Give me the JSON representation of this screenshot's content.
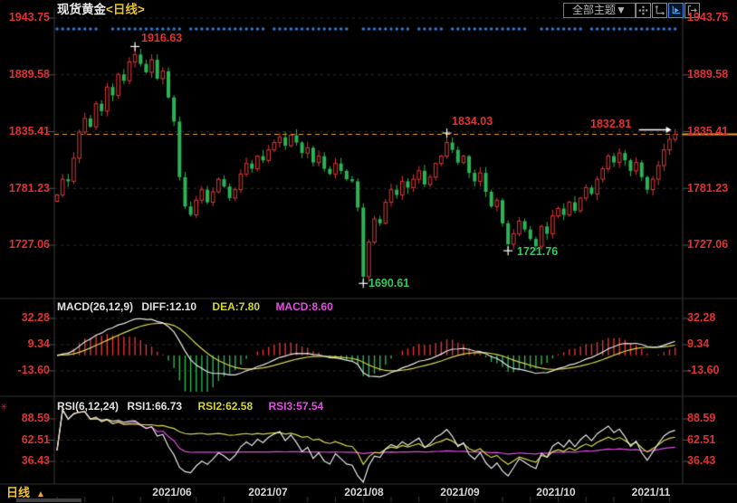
{
  "header": {
    "symbol": "现货黄金",
    "period": "<日线>"
  },
  "toolbar": {
    "theme_label": "全部主题▼",
    "icons": [
      "pan-icon",
      "axis-scale-icon",
      "axis-play-icon",
      "exit-chart-icon"
    ],
    "active_icon": "axis-play-icon"
  },
  "axes": {
    "price": [
      "1943.75",
      "1889.58",
      "1835.41",
      "1781.23",
      "1727.06"
    ],
    "macd": [
      "32.28",
      "9.34",
      "-13.60"
    ],
    "rsi": [
      "88.59",
      "62.51",
      "36.43"
    ]
  },
  "macd_legend": {
    "title": "MACD(26,12,9)",
    "diff": "DIFF:12.10",
    "dea": "DEA:7.80",
    "macd": "MACD:8.60"
  },
  "rsi_legend": {
    "title": "RSI(6,12,24)",
    "rsi1": "RSI1:66.73",
    "rsi2": "RSI2:62.58",
    "rsi3": "RSI3:57.54"
  },
  "status_bar": {
    "period": "日线",
    "arrow": "▲",
    "marker": "✳"
  },
  "colors": {
    "up": "#e23535",
    "down": "#2bb457",
    "up_text": "#e03232",
    "down_text": "#33c95f",
    "last_price_line": "#f0a030",
    "diff_line": "#e8e8e8",
    "dea_line": "#d8d84a",
    "macd_line": "#e24ee2",
    "event_dot": "#2e7fd6",
    "grid": "#2b2b2b",
    "border": "#3c3c3c"
  },
  "chart_data": {
    "type": "candlestick",
    "title": "现货黄金 日线 (Spot Gold, daily)",
    "x_labels": [
      "2021/06",
      "2021/07",
      "2021/08",
      "2021/09",
      "2021/10",
      "2021/11"
    ],
    "price_axis": [
      1943.75,
      1889.58,
      1835.41,
      1781.23,
      1727.06
    ],
    "macd_axis": [
      32.28,
      9.34,
      -13.6
    ],
    "rsi_axis": [
      88.59,
      62.51,
      36.43
    ],
    "closes": [
      1775,
      1790,
      1788,
      1810,
      1835,
      1848,
      1840,
      1862,
      1855,
      1878,
      1870,
      1890,
      1884,
      1902,
      1909,
      1900,
      1892,
      1904,
      1886,
      1893,
      1868,
      1845,
      1792,
      1764,
      1756,
      1770,
      1780,
      1768,
      1778,
      1790,
      1783,
      1772,
      1780,
      1795,
      1805,
      1800,
      1812,
      1808,
      1818,
      1825,
      1830,
      1822,
      1832,
      1825,
      1815,
      1820,
      1806,
      1812,
      1800,
      1795,
      1805,
      1798,
      1790,
      1788,
      1763,
      1697,
      1730,
      1752,
      1748,
      1768,
      1780,
      1775,
      1788,
      1782,
      1790,
      1798,
      1785,
      1792,
      1805,
      1812,
      1825,
      1818,
      1806,
      1812,
      1796,
      1788,
      1796,
      1778,
      1764,
      1770,
      1748,
      1728,
      1738,
      1750,
      1742,
      1733,
      1726,
      1745,
      1738,
      1755,
      1762,
      1756,
      1768,
      1760,
      1772,
      1782,
      1776,
      1790,
      1800,
      1812,
      1806,
      1815,
      1808,
      1798,
      1806,
      1792,
      1780,
      1790,
      1803,
      1818,
      1828,
      1832.81
    ],
    "key_points": [
      {
        "day": 14,
        "kind": "high",
        "value": 1916.63,
        "label": "1916.63",
        "trend": "up"
      },
      {
        "day": 55,
        "kind": "low",
        "value": 1690.61,
        "label": "1690.61",
        "trend": "down"
      },
      {
        "day": 70,
        "kind": "high",
        "value": 1834.03,
        "label": "1834.03",
        "trend": "up"
      },
      {
        "day": 81,
        "kind": "low",
        "value": 1721.76,
        "label": "1721.76",
        "trend": "down"
      },
      {
        "day": 111,
        "kind": "close",
        "value": 1832.81,
        "label": "1832.81",
        "trend": "up"
      }
    ],
    "last_price_level": 1832.81,
    "event_dot_gaps": [
      8,
      9,
      23,
      38,
      53,
      54,
      64,
      70,
      85,
      86,
      95
    ],
    "indicators": {
      "macd": {
        "params": [
          26,
          12,
          9
        ],
        "diff": 12.1,
        "dea": 7.8,
        "macd": 8.6
      },
      "rsi": {
        "params": [
          6,
          12,
          24
        ],
        "rsi1": 66.73,
        "rsi2": 62.58,
        "rsi3": 57.54
      }
    }
  }
}
